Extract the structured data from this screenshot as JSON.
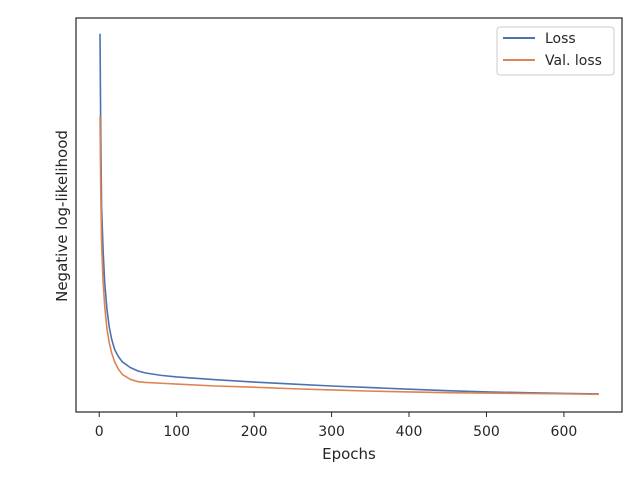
{
  "chart_data": {
    "type": "line",
    "title": "",
    "xlabel": "Epochs",
    "ylabel": "Negative log-likelihood",
    "xlim": [
      -30,
      675
    ],
    "ylim": [
      0.0,
      1.0
    ],
    "x_ticks": [
      0,
      100,
      200,
      300,
      400,
      500,
      600
    ],
    "y_ticks_visible": false,
    "grid": false,
    "legend_position": "top-right",
    "series": [
      {
        "name": "Loss",
        "color": "#4c72b0",
        "x": [
          1,
          2,
          3,
          5,
          7,
          10,
          13,
          16,
          20,
          25,
          30,
          40,
          50,
          60,
          80,
          100,
          150,
          200,
          250,
          300,
          350,
          400,
          450,
          500,
          550,
          600,
          645
        ],
        "y": [
          0.96,
          0.7,
          0.52,
          0.41,
          0.33,
          0.26,
          0.215,
          0.185,
          0.158,
          0.14,
          0.127,
          0.113,
          0.104,
          0.099,
          0.093,
          0.089,
          0.082,
          0.076,
          0.071,
          0.066,
          0.062,
          0.058,
          0.054,
          0.051,
          0.049,
          0.047,
          0.046
        ]
      },
      {
        "name": "Val. loss",
        "color": "#dd8452",
        "x": [
          1,
          2,
          3,
          5,
          7,
          10,
          13,
          16,
          20,
          25,
          30,
          40,
          50,
          60,
          80,
          100,
          150,
          200,
          250,
          300,
          350,
          400,
          450,
          500,
          550,
          600,
          645
        ],
        "y": [
          0.75,
          0.56,
          0.43,
          0.33,
          0.27,
          0.21,
          0.175,
          0.15,
          0.127,
          0.108,
          0.095,
          0.083,
          0.077,
          0.075,
          0.073,
          0.071,
          0.066,
          0.063,
          0.059,
          0.056,
          0.053,
          0.051,
          0.049,
          0.048,
          0.047,
          0.046,
          0.045
        ]
      }
    ]
  }
}
